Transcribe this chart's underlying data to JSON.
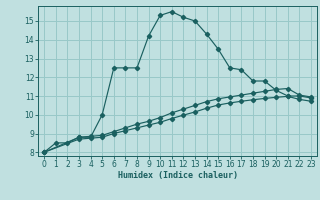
{
  "xlabel": "Humidex (Indice chaleur)",
  "bg_color": "#c0e0e0",
  "grid_color": "#98c8c8",
  "line_color": "#1a6060",
  "xlim": [
    -0.5,
    23.5
  ],
  "ylim": [
    7.8,
    15.8
  ],
  "yticks": [
    8,
    9,
    10,
    11,
    12,
    13,
    14,
    15
  ],
  "xticks": [
    0,
    1,
    2,
    3,
    4,
    5,
    6,
    7,
    8,
    9,
    10,
    11,
    12,
    13,
    14,
    15,
    16,
    17,
    18,
    19,
    20,
    21,
    22,
    23
  ],
  "series1_x": [
    0,
    1,
    2,
    3,
    4,
    5,
    6,
    7,
    8,
    9,
    10,
    11,
    12,
    13,
    14,
    15,
    16,
    17,
    18,
    19,
    20,
    21,
    22,
    23
  ],
  "series1_y": [
    8.0,
    8.5,
    8.5,
    8.8,
    8.8,
    10.0,
    12.5,
    12.5,
    12.5,
    14.2,
    15.3,
    15.5,
    15.2,
    15.0,
    14.3,
    13.5,
    12.5,
    12.4,
    11.8,
    11.8,
    11.3,
    11.0,
    11.0,
    10.9
  ],
  "series2_x": [
    0,
    3,
    4,
    5,
    6,
    7,
    8,
    9,
    10,
    11,
    12,
    13,
    14,
    15,
    16,
    17,
    18,
    19,
    20,
    21,
    22,
    23
  ],
  "series2_y": [
    8.0,
    8.8,
    8.85,
    8.9,
    9.1,
    9.3,
    9.5,
    9.65,
    9.85,
    10.1,
    10.3,
    10.5,
    10.7,
    10.85,
    10.95,
    11.05,
    11.15,
    11.25,
    11.35,
    11.4,
    11.05,
    10.95
  ],
  "series3_x": [
    0,
    3,
    4,
    5,
    6,
    7,
    8,
    9,
    10,
    11,
    12,
    13,
    14,
    15,
    16,
    17,
    18,
    19,
    20,
    21,
    22,
    23
  ],
  "series3_y": [
    8.0,
    8.7,
    8.75,
    8.8,
    9.0,
    9.15,
    9.3,
    9.45,
    9.6,
    9.8,
    9.98,
    10.15,
    10.35,
    10.52,
    10.63,
    10.72,
    10.8,
    10.87,
    10.93,
    10.98,
    10.82,
    10.72
  ]
}
